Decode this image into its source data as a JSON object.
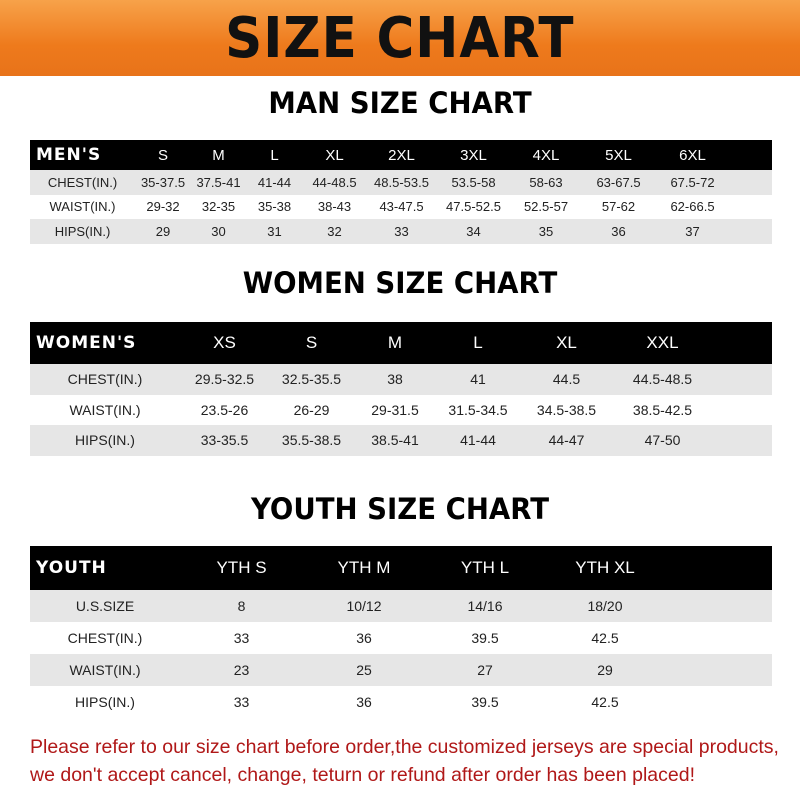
{
  "banner": {
    "title": "SIZE CHART",
    "color": "#ee7a1c"
  },
  "men": {
    "title": "MAN SIZE CHART",
    "header": [
      "MEN'S",
      "S",
      "M",
      "L",
      "XL",
      "2XL",
      "3XL",
      "4XL",
      "5XL",
      "6XL"
    ],
    "rows": [
      [
        "CHEST(IN.)",
        "35-37.5",
        "37.5-41",
        "41-44",
        "44-48.5",
        "48.5-53.5",
        "53.5-58",
        "58-63",
        "63-67.5",
        "67.5-72"
      ],
      [
        "WAIST(IN.)",
        "29-32",
        "32-35",
        "35-38",
        "38-43",
        "43-47.5",
        "47.5-52.5",
        "52.5-57",
        "57-62",
        "62-66.5"
      ],
      [
        "HIPS(IN.)",
        "29",
        "30",
        "31",
        "32",
        "33",
        "34",
        "35",
        "36",
        "37"
      ]
    ]
  },
  "women": {
    "title": "WOMEN SIZE CHART",
    "header": [
      "WOMEN'S",
      "XS",
      "S",
      "M",
      "L",
      "XL",
      "XXL"
    ],
    "rows": [
      [
        "CHEST(IN.)",
        "29.5-32.5",
        "32.5-35.5",
        "38",
        "41",
        "44.5",
        "44.5-48.5"
      ],
      [
        "WAIST(IN.)",
        "23.5-26",
        "26-29",
        "29-31.5",
        "31.5-34.5",
        "34.5-38.5",
        "38.5-42.5"
      ],
      [
        "HIPS(IN.)",
        "33-35.5",
        "35.5-38.5",
        "38.5-41",
        "41-44",
        "44-47",
        "47-50"
      ]
    ]
  },
  "youth": {
    "title": "YOUTH SIZE CHART",
    "header": [
      "YOUTH",
      "YTH S",
      "YTH M",
      "YTH L",
      "YTH XL"
    ],
    "rows": [
      [
        "U.S.SIZE",
        "8",
        "10/12",
        "14/16",
        "18/20"
      ],
      [
        "CHEST(IN.)",
        "33",
        "36",
        "39.5",
        "42.5"
      ],
      [
        "WAIST(IN.)",
        "23",
        "25",
        "27",
        "29"
      ],
      [
        "HIPS(IN.)",
        "33",
        "36",
        "39.5",
        "42.5"
      ]
    ]
  },
  "note": {
    "line1": "Please refer to our size chart before order,the customized jerseys are special products,",
    "line2": "we don't accept cancel, change, teturn or refund after order has been placed!",
    "color": "#b01818"
  }
}
